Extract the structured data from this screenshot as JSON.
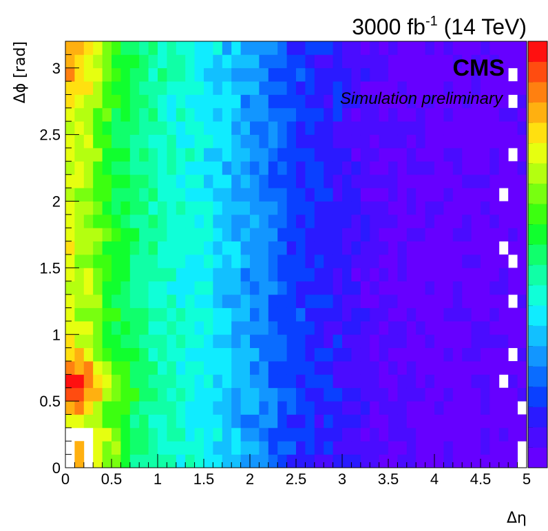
{
  "chart_data": {
    "type": "heatmap",
    "title_main": "3000 fb",
    "title_sup": "-1",
    "title_tail": " (14 TeV)",
    "experiment": "CMS",
    "status": "Simulation preliminary",
    "xlabel": "Δη",
    "ylabel": "Δϕ [rad]",
    "xlim": [
      0,
      5
    ],
    "ylim": [
      0,
      3.2
    ],
    "x_ticks": [
      "0",
      "0.5",
      "1",
      "1.5",
      "2",
      "2.5",
      "3",
      "3.5",
      "4",
      "4.5",
      "5"
    ],
    "y_ticks": [
      "0",
      "0.5",
      "1",
      "1.5",
      "2",
      "2.5",
      "3"
    ],
    "binning": {
      "nx": 50,
      "ny": 32
    },
    "color_scale": "ROOT rainbow, low = violet, high = red (palette levels shown on the right, no numeric labels)",
    "density_profile_by_eta": [
      {
        "eta": 0.05,
        "level": 0.72
      },
      {
        "eta": 0.25,
        "level": 0.68
      },
      {
        "eta": 0.5,
        "level": 0.55
      },
      {
        "eta": 0.75,
        "level": 0.5
      },
      {
        "eta": 1.0,
        "level": 0.44
      },
      {
        "eta": 1.5,
        "level": 0.37
      },
      {
        "eta": 2.0,
        "level": 0.27
      },
      {
        "eta": 2.5,
        "level": 0.16
      },
      {
        "eta": 3.0,
        "level": 0.1
      },
      {
        "eta": 3.5,
        "level": 0.04
      },
      {
        "eta": 4.0,
        "level": 0.02
      },
      {
        "eta": 5.0,
        "level": 0.02
      }
    ],
    "features": [
      "maximum at small Δη near Δϕ ≈ 0.5–0.7 rad (red)",
      "secondary high region at small Δη near Δϕ ≈ 3 rad (orange/yellow)",
      "empty bins at Δη < 0.3, Δϕ < 0.3"
    ],
    "colors": {
      "palette": [
        "#6600ff",
        "#4a0cff",
        "#2a1aff",
        "#0a40ff",
        "#0a6cff",
        "#1296ff",
        "#12c0ff",
        "#10ecff",
        "#10ffd8",
        "#10ffa6",
        "#10ff6c",
        "#10ff2e",
        "#3cff10",
        "#78ff10",
        "#b4ff10",
        "#e6ff10",
        "#ffe010",
        "#ffb010",
        "#ff8010",
        "#ff4c10",
        "#ff1010"
      ]
    }
  }
}
